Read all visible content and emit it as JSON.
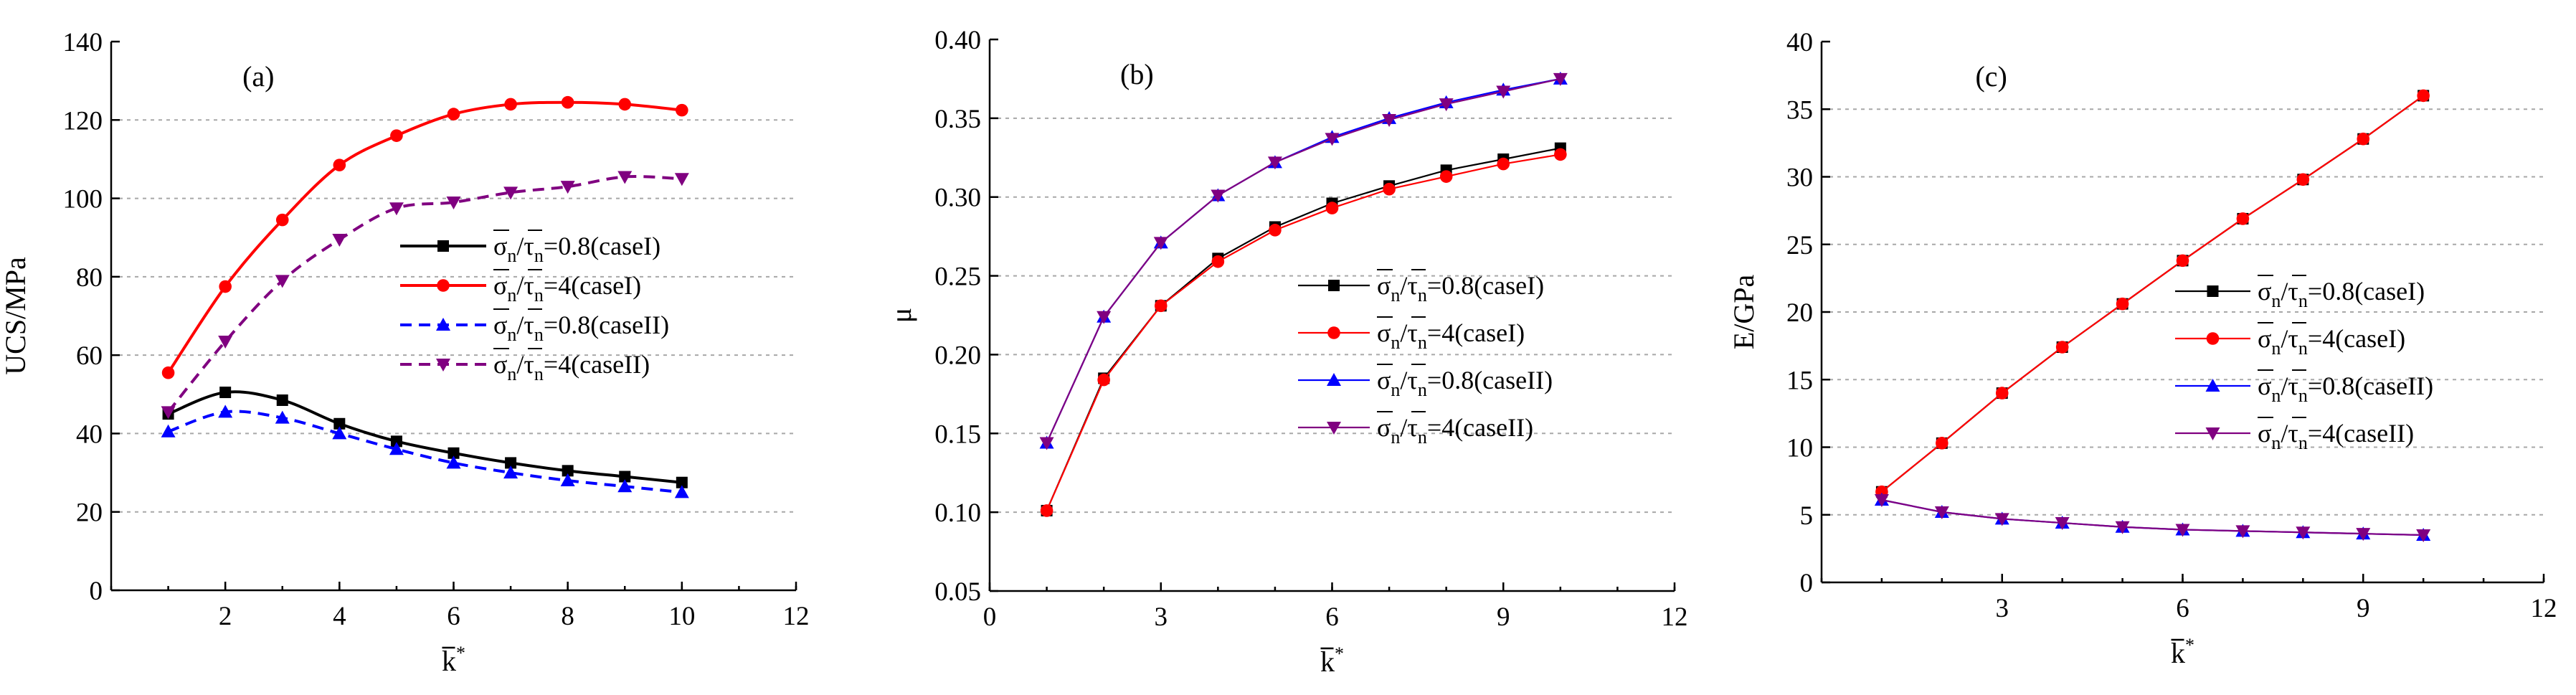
{
  "chart_data": [
    {
      "type": "line",
      "title": "(a)",
      "xlabel": "k*",
      "ylabel": "UCS/MPa",
      "xlim": [
        0,
        12
      ],
      "ylim": [
        0,
        140
      ],
      "xticks": [
        2,
        4,
        6,
        8,
        10,
        12
      ],
      "yticks": [
        0,
        20,
        40,
        60,
        80,
        100,
        120,
        140
      ],
      "grid": "horizontal-dashed",
      "legend_position": "middle-right",
      "x": [
        1,
        2,
        3,
        4,
        5,
        6,
        7,
        8,
        9,
        10
      ],
      "series": [
        {
          "name": "σn/τn=0.8(caseI)",
          "legend_ratio": "0.8",
          "legend_case": "(caseI)",
          "values": [
            45,
            50.5,
            48.5,
            42.5,
            38,
            35,
            32.5,
            30.5,
            29,
            27.5
          ],
          "color": "#000000",
          "marker": "square",
          "dash": "solid"
        },
        {
          "name": "σn/τn=4(caseI)",
          "legend_ratio": "4",
          "legend_case": "(caseI)",
          "values": [
            55.5,
            77.5,
            94.5,
            108.5,
            116,
            121.5,
            124,
            124.5,
            124,
            122.5
          ],
          "color": "#ff0000",
          "marker": "circle",
          "dash": "solid"
        },
        {
          "name": "σn/τn=0.8(caseII)",
          "legend_ratio": "0.8",
          "legend_case": "(caseII)",
          "values": [
            40.5,
            45.5,
            44,
            40,
            36,
            32.5,
            30,
            28,
            26.5,
            25
          ],
          "color": "#0000ff",
          "marker": "triangle-up",
          "dash": "dashed"
        },
        {
          "name": "σn/τn=4(caseII)",
          "legend_ratio": "4",
          "legend_case": "(caseII)",
          "values": [
            45.5,
            63.5,
            79,
            89.5,
            97.5,
            99,
            101.5,
            103,
            105.5,
            105
          ],
          "color": "#800080",
          "marker": "triangle-down",
          "dash": "dashed"
        }
      ]
    },
    {
      "type": "line",
      "title": "(b)",
      "xlabel": "k*",
      "ylabel": "μ",
      "xlim": [
        0,
        12
      ],
      "ylim": [
        0.05,
        0.4
      ],
      "xticks": [
        0,
        3,
        6,
        9,
        12
      ],
      "yticks": [
        0.05,
        0.1,
        0.15,
        0.2,
        0.25,
        0.3,
        0.35,
        0.4
      ],
      "ytick_labels": [
        "0.05",
        "0.10",
        "0.15",
        "0.20",
        "0.25",
        "0.30",
        "0.35",
        "0.40"
      ],
      "grid": "horizontal-dashed",
      "legend_position": "middle-right",
      "x": [
        1,
        2,
        3,
        4,
        5,
        6,
        7,
        8,
        9,
        10
      ],
      "series": [
        {
          "name": "σn/τn=0.8(caseI)",
          "legend_ratio": "0.8",
          "legend_case": "(caseI)",
          "values": [
            0.101,
            0.185,
            0.231,
            0.261,
            0.281,
            0.296,
            0.307,
            0.317,
            0.324,
            0.331
          ],
          "color": "#000000",
          "marker": "square",
          "dash": "solid"
        },
        {
          "name": "σn/τn=4(caseI)",
          "legend_ratio": "4",
          "legend_case": "(caseI)",
          "values": [
            0.101,
            0.184,
            0.231,
            0.259,
            0.279,
            0.293,
            0.305,
            0.313,
            0.321,
            0.327
          ],
          "color": "#ff0000",
          "marker": "circle",
          "dash": "solid"
        },
        {
          "name": "σn/τn=0.8(caseII)",
          "legend_ratio": "0.8",
          "legend_case": "(caseII)",
          "values": [
            0.144,
            0.224,
            0.271,
            0.301,
            0.322,
            0.338,
            0.35,
            0.36,
            0.368,
            0.375
          ],
          "color": "#0000ff",
          "marker": "triangle-up",
          "dash": "solid"
        },
        {
          "name": "σn/τn=4(caseII)",
          "legend_ratio": "4",
          "legend_case": "(caseII)",
          "values": [
            0.144,
            0.224,
            0.271,
            0.301,
            0.322,
            0.337,
            0.349,
            0.359,
            0.367,
            0.375
          ],
          "color": "#800080",
          "marker": "triangle-down",
          "dash": "solid"
        }
      ]
    },
    {
      "type": "line",
      "title": "(c)",
      "xlabel": "k*",
      "ylabel": "E/GPa",
      "xlim": [
        0,
        12
      ],
      "ylim": [
        0,
        40
      ],
      "xticks": [
        3,
        6,
        9,
        12
      ],
      "yticks": [
        0,
        5,
        10,
        15,
        20,
        25,
        30,
        35,
        40
      ],
      "grid": "horizontal-dashed",
      "legend_position": "middle-right",
      "x": [
        1,
        2,
        3,
        4,
        5,
        6,
        7,
        8,
        9,
        10
      ],
      "series": [
        {
          "name": "σn/τn=0.8(caseI)",
          "legend_ratio": "0.8",
          "legend_case": "(caseI)",
          "values": [
            6.7,
            10.3,
            14,
            17.4,
            20.6,
            23.8,
            26.9,
            29.8,
            32.8,
            36
          ],
          "color": "#000000",
          "marker": "square",
          "dash": "solid"
        },
        {
          "name": "σn/τn=4(caseI)",
          "legend_ratio": "4",
          "legend_case": "(caseI)",
          "values": [
            6.7,
            10.3,
            14,
            17.4,
            20.6,
            23.8,
            26.9,
            29.8,
            32.8,
            36
          ],
          "color": "#ff0000",
          "marker": "circle",
          "dash": "solid"
        },
        {
          "name": "σn/τn=0.8(caseII)",
          "legend_ratio": "0.8",
          "legend_case": "(caseII)",
          "values": [
            6.1,
            5.2,
            4.7,
            4.4,
            4.1,
            3.9,
            3.8,
            3.7,
            3.6,
            3.5
          ],
          "color": "#0000ff",
          "marker": "triangle-up",
          "dash": "solid"
        },
        {
          "name": "σn/τn=4(caseII)",
          "legend_ratio": "4",
          "legend_case": "(caseII)",
          "values": [
            6.1,
            5.2,
            4.7,
            4.4,
            4.1,
            3.9,
            3.8,
            3.7,
            3.6,
            3.5
          ],
          "color": "#800080",
          "marker": "triangle-down",
          "dash": "solid"
        }
      ]
    }
  ]
}
